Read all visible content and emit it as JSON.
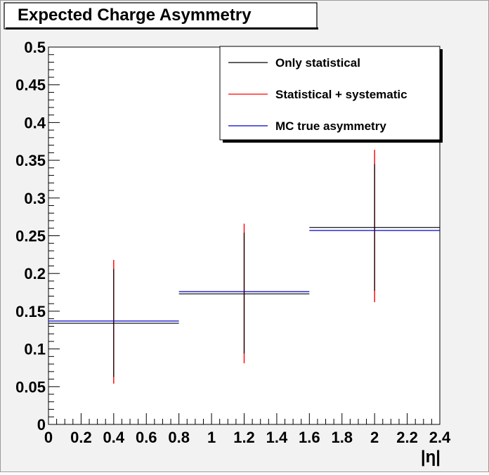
{
  "chart_data": {
    "type": "scatter",
    "title": "Expected Charge Asymmetry",
    "xlabel": "|η|",
    "ylabel": "",
    "xlim": [
      0,
      2.4
    ],
    "ylim": [
      0,
      0.5
    ],
    "x_ticks": [
      "0",
      "0.2",
      "0.4",
      "0.6",
      "0.8",
      "1",
      "1.2",
      "1.4",
      "1.6",
      "1.8",
      "2",
      "2.2",
      "2.4"
    ],
    "y_ticks": [
      "0",
      "0.05",
      "0.1",
      "0.15",
      "0.2",
      "0.25",
      "0.3",
      "0.35",
      "0.4",
      "0.45",
      "0.5"
    ],
    "grid": false,
    "legend_position": "top-right",
    "bins": [
      {
        "x_low": 0.0,
        "x_high": 0.8,
        "x_center": 0.4
      },
      {
        "x_low": 0.8,
        "x_high": 1.6,
        "x_center": 1.2
      },
      {
        "x_low": 1.6,
        "x_high": 2.4,
        "x_center": 2.0
      }
    ],
    "series": [
      {
        "name": "Only statistical",
        "color": "#000000",
        "values": [
          0.134,
          0.173,
          0.261
        ],
        "y_low": [
          0.063,
          0.094,
          0.177
        ],
        "y_high": [
          0.206,
          0.254,
          0.345
        ]
      },
      {
        "name": "Statistical + systematic",
        "color": "#ff0000",
        "values": [
          0.134,
          0.173,
          0.261
        ],
        "y_low": [
          0.054,
          0.081,
          0.162
        ],
        "y_high": [
          0.218,
          0.266,
          0.364
        ]
      },
      {
        "name": "MC true asymmetry",
        "color": "#0000cc",
        "values": [
          0.137,
          0.176,
          0.257
        ]
      }
    ]
  }
}
